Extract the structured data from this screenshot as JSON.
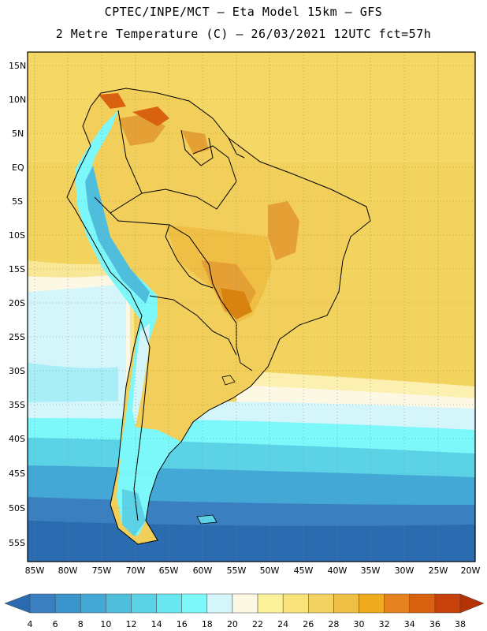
{
  "header": {
    "line1": "CPTEC/INPE/MCT –  Eta Model 15km – GFS",
    "line2": "2 Metre Temperature (C) – 26/03/2021 12UTC fct=57h"
  },
  "map": {
    "lat_labels": [
      "15N",
      "10N",
      "5N",
      "EQ",
      "5S",
      "10S",
      "15S",
      "20S",
      "25S",
      "30S",
      "35S",
      "40S",
      "45S",
      "50S",
      "55S"
    ],
    "lon_labels": [
      "85W",
      "80W",
      "75W",
      "70W",
      "65W",
      "60W",
      "55W",
      "50W",
      "45W",
      "40W",
      "35W",
      "30W",
      "25W",
      "20W"
    ]
  },
  "colorbar": {
    "ticks": [
      "4",
      "6",
      "8",
      "10",
      "12",
      "14",
      "16",
      "18",
      "20",
      "22",
      "24",
      "26",
      "28",
      "30",
      "32",
      "34",
      "36",
      "38"
    ],
    "colors": [
      "#2b6cb0",
      "#3a80c0",
      "#3a95cc",
      "#44a8d6",
      "#4fbedd",
      "#5bd2e6",
      "#6ae6f0",
      "#7cf7fa",
      "#d4f6fb",
      "#fdf8e3",
      "#fbf29a",
      "#f8e37a",
      "#f4d262",
      "#efbf45",
      "#f0aa1e",
      "#e5821f",
      "#d8620f",
      "#c7420a",
      "#b33307"
    ]
  }
}
